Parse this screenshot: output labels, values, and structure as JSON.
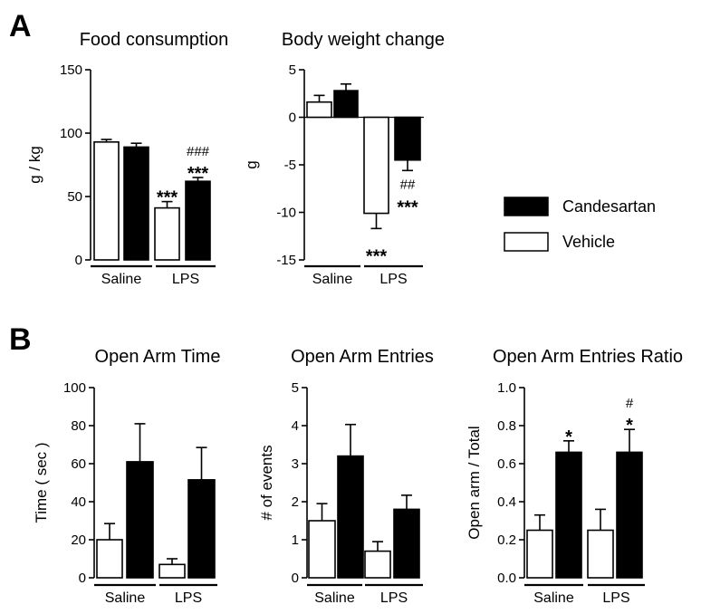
{
  "panel_letters": [
    "A",
    "B"
  ],
  "legend": [
    {
      "label": "Candesartan",
      "fill": "#000000"
    },
    {
      "label": "Vehicle",
      "fill": "#ffffff"
    }
  ],
  "chart_data": [
    {
      "type": "bar",
      "title": "Food consumption",
      "ylabel": "g / kg",
      "ylim": [
        0,
        150
      ],
      "yticks": [
        0,
        50,
        100,
        150
      ],
      "categories": [
        "Saline",
        "LPS"
      ],
      "series": [
        {
          "name": "Vehicle",
          "values": [
            93,
            41
          ],
          "errors": [
            2,
            5
          ]
        },
        {
          "name": "Candesartan",
          "values": [
            89,
            62
          ],
          "errors": [
            3,
            3
          ]
        }
      ],
      "annotations": [
        {
          "category": "LPS",
          "series": "Vehicle",
          "stars": "***",
          "hash": ""
        },
        {
          "category": "LPS",
          "series": "Candesartan",
          "stars": "***",
          "hash": "###"
        }
      ]
    },
    {
      "type": "bar",
      "title": "Body weight change",
      "ylabel": "g",
      "ylim": [
        -15,
        5
      ],
      "yticks": [
        -15,
        -10,
        -5,
        0,
        5
      ],
      "categories": [
        "Saline",
        "LPS"
      ],
      "series": [
        {
          "name": "Vehicle",
          "values": [
            1.6,
            -10.1
          ],
          "errors": [
            0.7,
            1.6
          ]
        },
        {
          "name": "Candesartan",
          "values": [
            2.8,
            -4.5
          ],
          "errors": [
            0.7,
            1.1
          ]
        }
      ],
      "annotations": [
        {
          "category": "LPS",
          "series": "Vehicle",
          "stars": "***",
          "hash": ""
        },
        {
          "category": "LPS",
          "series": "Candesartan",
          "stars": "***",
          "hash": "##"
        }
      ]
    },
    {
      "type": "bar",
      "title": "Open Arm Time",
      "ylabel": "Time ( sec )",
      "ylim": [
        0,
        100
      ],
      "yticks": [
        0,
        20,
        40,
        60,
        80,
        100
      ],
      "categories": [
        "Saline",
        "LPS"
      ],
      "series": [
        {
          "name": "Vehicle",
          "values": [
            20,
            7
          ],
          "errors": [
            8.5,
            3
          ]
        },
        {
          "name": "Candesartan",
          "values": [
            61,
            51.5
          ],
          "errors": [
            20,
            17
          ]
        }
      ],
      "annotations": []
    },
    {
      "type": "bar",
      "title": "Open Arm Entries",
      "ylabel": "# of events",
      "ylim": [
        0,
        5
      ],
      "yticks": [
        0,
        1,
        2,
        3,
        4,
        5
      ],
      "categories": [
        "Saline",
        "LPS"
      ],
      "series": [
        {
          "name": "Vehicle",
          "values": [
            1.5,
            0.7
          ],
          "errors": [
            0.45,
            0.25
          ]
        },
        {
          "name": "Candesartan",
          "values": [
            3.2,
            1.8
          ],
          "errors": [
            0.83,
            0.37
          ]
        }
      ],
      "annotations": []
    },
    {
      "type": "bar",
      "title": "Open Arm Entries Ratio",
      "ylabel": "Open arm / Total",
      "ylim": [
        0,
        1.0
      ],
      "yticks": [
        "0.0",
        "0.2",
        "0.4",
        "0.6",
        "0.8",
        "1.0"
      ],
      "categories": [
        "Saline",
        "LPS"
      ],
      "series": [
        {
          "name": "Vehicle",
          "values": [
            0.25,
            0.25
          ],
          "errors": [
            0.08,
            0.11
          ]
        },
        {
          "name": "Candesartan",
          "values": [
            0.66,
            0.66
          ],
          "errors": [
            0.06,
            0.12
          ]
        }
      ],
      "annotations": [
        {
          "category": "Saline",
          "series": "Candesartan",
          "stars": "*",
          "hash": ""
        },
        {
          "category": "LPS",
          "series": "Candesartan",
          "stars": "*",
          "hash": "#"
        }
      ]
    }
  ]
}
